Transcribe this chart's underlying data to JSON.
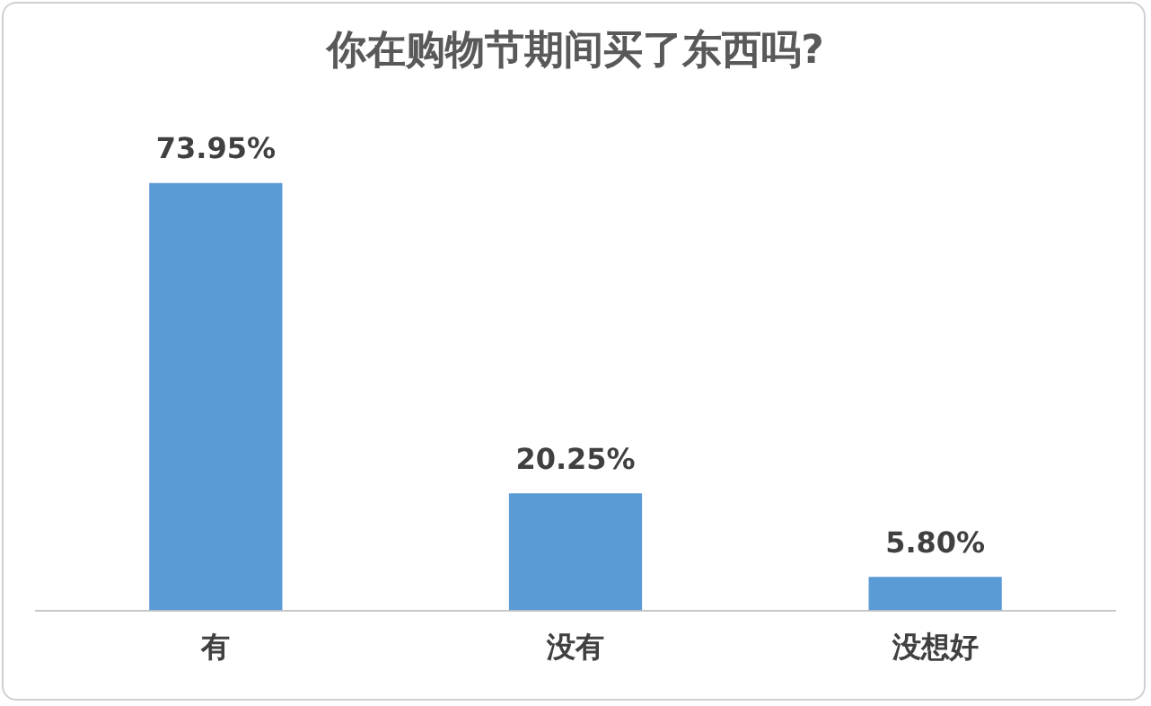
{
  "chart_data": {
    "type": "bar",
    "title": "你在购物节期间买了东西吗?",
    "categories": [
      "有",
      "没有",
      "没想好"
    ],
    "values": [
      73.95,
      20.25,
      5.8
    ],
    "value_labels": [
      "73.95%",
      "20.25%",
      "5.80%"
    ],
    "color": "#5b9bd5",
    "tick_labels": "x",
    "grid": false,
    "legend": false
  }
}
